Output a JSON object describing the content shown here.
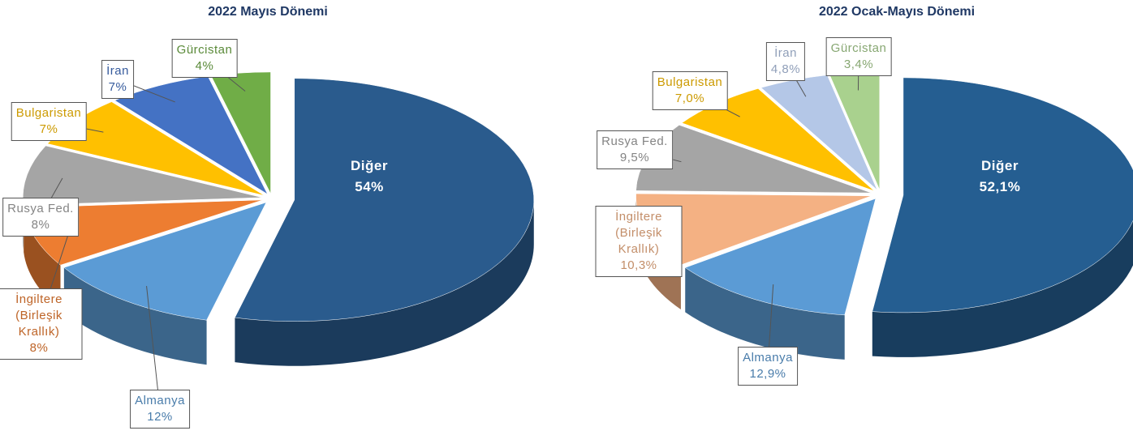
{
  "chart_data": [
    {
      "type": "pie",
      "title": "2022 Mayıs Dönemi",
      "categories": [
        "Diğer",
        "Almanya",
        "İngiltere (Birleşik Krallık)",
        "Rusya Fed.",
        "Bulgaristan",
        "İran",
        "Gürcistan"
      ],
      "values": [
        54,
        12,
        8,
        8,
        7,
        7,
        4
      ],
      "value_labels": [
        "54%",
        "12%",
        "8%",
        "8%",
        "7%",
        "7%",
        "4%"
      ],
      "colors": [
        "#2a5b8d",
        "#5b9bd5",
        "#ed7d31",
        "#a5a5a5",
        "#ffc000",
        "#4472c4",
        "#70ad47"
      ]
    },
    {
      "type": "pie",
      "title": "2022 Ocak-Mayıs Dönemi",
      "categories": [
        "Diğer",
        "Almanya",
        "İngiltere (Birleşik Krallık)",
        "Rusya Fed.",
        "Bulgaristan",
        "İran",
        "Gürcistan"
      ],
      "values": [
        52.1,
        12.9,
        10.3,
        9.5,
        7.0,
        4.8,
        3.4
      ],
      "value_labels": [
        "52,1%",
        "12,9%",
        "10,3%",
        "9,5%",
        "7,0%",
        "4,8%",
        "3,4%"
      ],
      "colors": [
        "#255e91",
        "#5b9bd5",
        "#f4b183",
        "#a5a5a5",
        "#ffc000",
        "#b4c7e7",
        "#a9d18e"
      ]
    }
  ]
}
